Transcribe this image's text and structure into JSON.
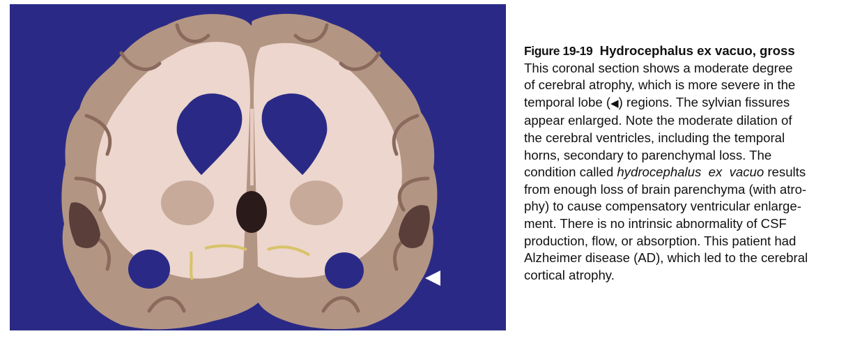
{
  "figure": {
    "number": "Figure 19-19",
    "title": "Hydrocephalus ex vacuo, gross",
    "image_alt": "Coronal section of brain showing cerebral atrophy and ventricular dilation"
  },
  "caption": {
    "line1": "This coronal section shows a moderate degree",
    "line2": "of cerebral atrophy, which is more severe in the",
    "line3_pre": "temporal lobe (",
    "line3_arrow": "◀",
    "line3_post": ") regions. The sylvian fissures",
    "line4": "appear enlarged. Note the moderate dilation of",
    "line5": "the cerebral ventricles, including the temporal",
    "line6": "horns, secondary to parenchymal loss. The",
    "line7_pre": "condition called ",
    "line7_italic": "hydrocephalus  ex  vacuo",
    "line7_post": " results",
    "line8": "from enough loss of brain parenchyma (with atro-",
    "line9": "phy) to cause compensatory ventricular enlarge-",
    "line10": "ment. There is no intrinsic abnormality of CSF",
    "line11": "production, flow, or absorption. This patient had",
    "line12": "Alzheimer disease (AD), which led to the cerebral",
    "line13": "cortical atrophy."
  },
  "colors": {
    "background": "#2a2a86",
    "gray_matter": "#b89a86",
    "white_matter": "#f0dcd4",
    "cortex_dark": "#8a6a5c",
    "arrow": "#ffffff"
  }
}
